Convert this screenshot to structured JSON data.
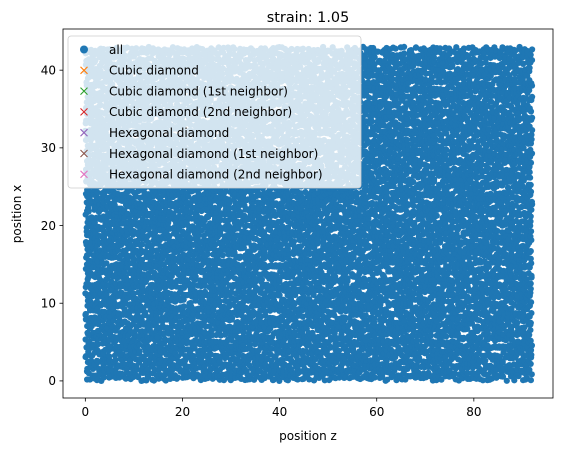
{
  "chart_data": {
    "type": "scatter",
    "title": "strain: 1.05",
    "xlabel": "position z",
    "ylabel": "position x",
    "xlim": [
      -4.6,
      96.3
    ],
    "ylim": [
      -2.2,
      45.3
    ],
    "xticks": [
      0,
      20,
      40,
      60,
      80
    ],
    "yticks": [
      0,
      10,
      20,
      30,
      40
    ],
    "grid": false,
    "legend_position": "upper-left",
    "series": [
      {
        "name": "all",
        "marker": "circle",
        "color": "#1f77b4",
        "x_range": [
          0,
          92
        ],
        "y_range": [
          0,
          43
        ],
        "visible": true
      },
      {
        "name": "Cubic diamond",
        "marker": "x",
        "color": "#ff7f0e",
        "x": [],
        "y": []
      },
      {
        "name": "Cubic diamond (1st neighbor)",
        "marker": "x",
        "color": "#2ca02c",
        "x": [],
        "y": []
      },
      {
        "name": "Cubic diamond (2nd neighbor)",
        "marker": "x",
        "color": "#d62728",
        "x": [],
        "y": []
      },
      {
        "name": "Hexagonal diamond",
        "marker": "x",
        "color": "#9467bd",
        "x": [],
        "y": []
      },
      {
        "name": "Hexagonal diamond (1st neighbor)",
        "marker": "x",
        "color": "#8c564b",
        "x": [],
        "y": []
      },
      {
        "name": "Hexagonal diamond (2nd neighbor)",
        "marker": "x",
        "color": "#e377c2",
        "x": [],
        "y": []
      }
    ]
  }
}
